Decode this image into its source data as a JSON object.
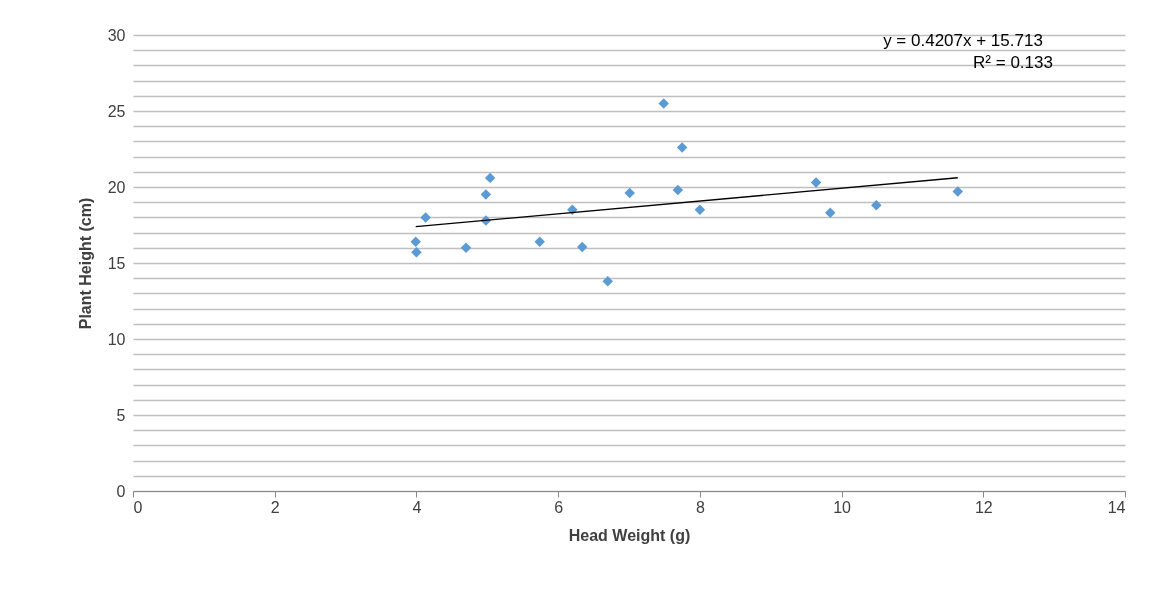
{
  "chart_data": {
    "type": "scatter",
    "xlabel": "Head Weight (g)",
    "ylabel": "Plant Height (cm)",
    "xlim": [
      0,
      14
    ],
    "xticks": [
      0,
      2,
      4,
      6,
      8,
      10,
      12,
      14
    ],
    "ylim": [
      0,
      30
    ],
    "yticks": [
      0,
      {
        "value": 1,
        "label": null
      },
      {
        "value": 2,
        "label": null
      },
      {
        "value": 3,
        "label": null
      },
      {
        "value": 4,
        "label": null
      },
      5,
      {
        "value": 6,
        "label": null
      },
      {
        "value": 7,
        "label": null
      },
      {
        "value": 8,
        "label": null
      },
      {
        "value": 9,
        "label": null
      },
      10,
      {
        "value": 11,
        "label": null
      },
      {
        "value": 12,
        "label": null
      },
      {
        "value": 13,
        "label": null
      },
      {
        "value": 14,
        "label": null
      },
      15,
      {
        "value": 16,
        "label": null
      },
      {
        "value": 17,
        "label": null
      },
      {
        "value": 18,
        "label": null
      },
      {
        "value": 19,
        "label": null
      },
      20,
      {
        "value": 21,
        "label": null
      },
      {
        "value": 22,
        "label": null
      },
      {
        "value": 23,
        "label": null
      },
      {
        "value": 24,
        "label": null
      },
      25,
      {
        "value": 26,
        "label": null
      },
      {
        "value": 27,
        "label": null
      },
      {
        "value": 28,
        "label": null
      },
      {
        "value": 29,
        "label": null
      },
      30
    ],
    "grid": "y",
    "series": [
      {
        "color": "#5b9bd5",
        "marker": "diamond",
        "x": [
          3.99,
          4.0,
          4.13,
          4.7,
          4.98,
          4.98,
          5.04,
          5.74,
          6.2,
          6.34,
          6.7,
          7.01,
          7.49,
          7.75,
          7.69,
          8.0,
          9.64,
          9.84,
          10.49,
          11.64
        ],
        "values": [
          16.4,
          15.7,
          18.0,
          16.0,
          19.5,
          17.8,
          20.6,
          16.4,
          18.5,
          16.05,
          13.8,
          19.6,
          25.5,
          22.6,
          19.8,
          18.5,
          20.3,
          18.3,
          18.8,
          19.7
        ]
      },
      {
        "type": "line",
        "color": "#000000",
        "line_style": "solid",
        "x": [
          3.99,
          11.64
        ],
        "values": [
          17.39,
          20.61
        ]
      }
    ],
    "annotations": [
      "y = 0.4207x + 15.713",
      "R² = 0.133"
    ]
  }
}
